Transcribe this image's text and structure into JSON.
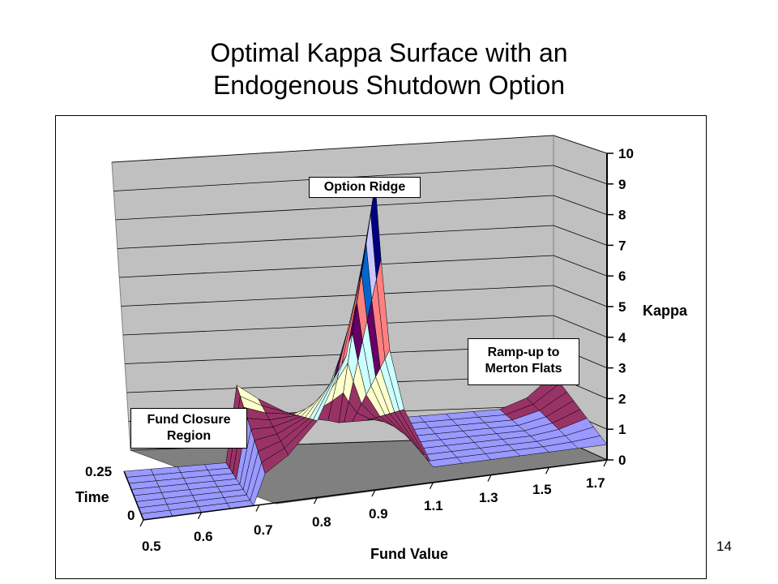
{
  "slide": {
    "title_line1": "Optimal Kappa Surface with an",
    "title_line2": "Endogenous Shutdown Option",
    "page_number": "14"
  },
  "chart_data": {
    "type": "surface",
    "xlabel": "Fund Value",
    "ylabel": "Time",
    "zlabel": "Kappa",
    "x_ticks": [
      "0.5",
      "0.6",
      "0.7",
      "0.8",
      "0.9",
      "1.1",
      "1.3",
      "1.5",
      "1.7"
    ],
    "y_ticks": [
      "0",
      "0.25"
    ],
    "z_ticks": [
      "0",
      "1",
      "2",
      "3",
      "4",
      "5",
      "6",
      "7",
      "8",
      "9",
      "10"
    ],
    "zlim": [
      0,
      10
    ],
    "grid": true,
    "annotations": [
      "Option Ridge",
      "Ramp-up to Merton Flats",
      "Fund Closure Region"
    ],
    "fund_value": [
      0.5,
      0.55,
      0.6,
      0.65,
      0.69,
      0.71,
      0.75,
      0.8,
      0.85,
      0.88,
      0.9,
      0.92,
      0.95,
      1.0,
      1.1,
      1.2,
      1.3,
      1.4,
      1.5,
      1.6,
      1.7
    ],
    "kappa_at_t0": [
      0,
      0,
      0,
      0,
      0,
      1.0,
      1.5,
      2.5,
      4.5,
      7.5,
      10,
      7.5,
      4.5,
      2.5,
      0.5,
      0.5,
      0.5,
      0.5,
      0.5,
      0.5,
      0.5
    ],
    "kappa_at_t025": [
      0,
      0,
      0,
      0,
      0,
      2.5,
      2.0,
      1.5,
      1.2,
      1.1,
      1.0,
      1.0,
      1.0,
      1.0,
      1.0,
      1.0,
      1.0,
      1.0,
      1.0,
      1.3,
      2.0
    ]
  },
  "annotations_text": {
    "ridge": "Option Ridge",
    "ramp_line1": "Ramp-up to",
    "ramp_line2": "Merton Flats",
    "closure_line1": "Fund Closure",
    "closure_line2": "Region"
  }
}
